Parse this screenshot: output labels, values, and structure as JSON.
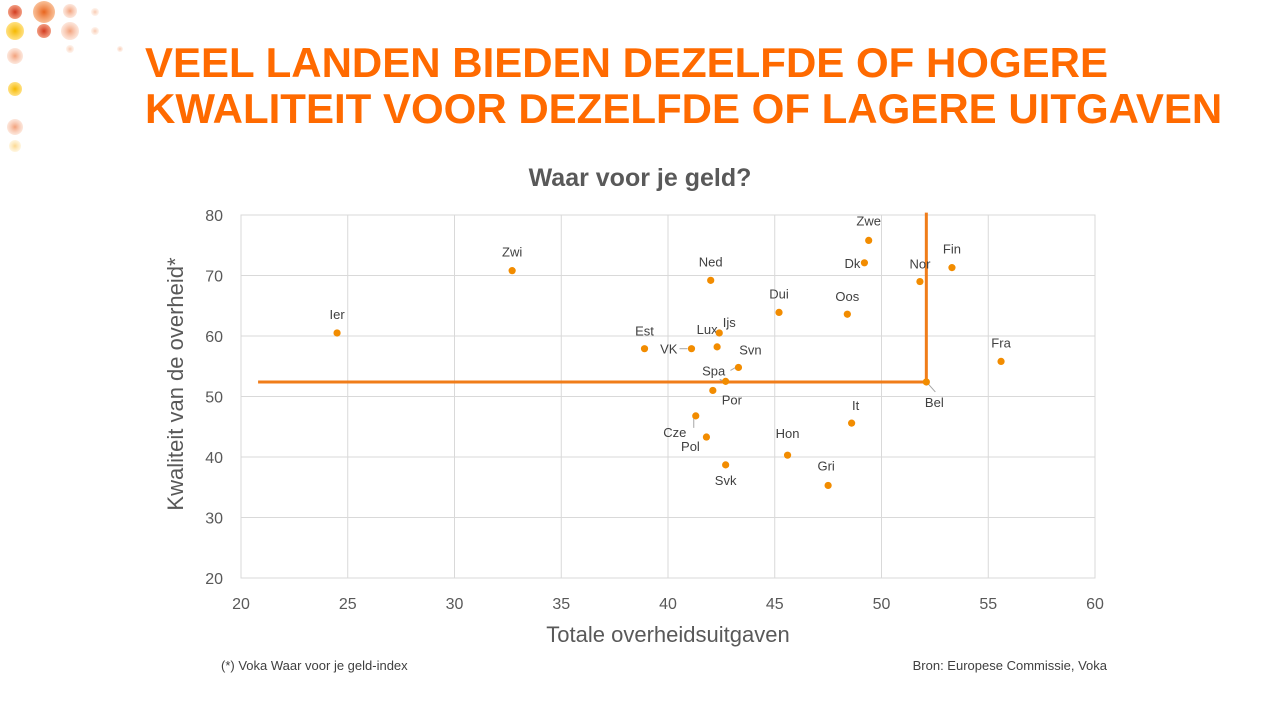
{
  "slide": {
    "headline_line1": "VEEL LANDEN BIEDEN DEZELFDE OF HOGERE",
    "headline_line2": "KWALITEIT VOOR DEZELFDE OF LAGERE UITGAVEN",
    "footnote": "(*) Voka Waar voor je geld-index",
    "source": "Bron: Europese Commissie, Voka",
    "accent_color": "#ff6a00",
    "point_color": "#f28c00"
  },
  "chart_data": {
    "type": "scatter",
    "title": "Waar voor je geld?",
    "xlabel": "Totale overheidsuitgaven",
    "ylabel": "Kwaliteit van de overheid*",
    "xlim": [
      20,
      60
    ],
    "ylim": [
      20,
      80
    ],
    "xticks": [
      "20",
      "25",
      "30",
      "35",
      "40",
      "45",
      "50",
      "55",
      "60"
    ],
    "yticks": [
      "20",
      "30",
      "40",
      "50",
      "60",
      "70",
      "80"
    ],
    "grid": true,
    "points": [
      {
        "label": "Ier",
        "x": 24.5,
        "y": 60.5
      },
      {
        "label": "Zwi",
        "x": 32.7,
        "y": 70.8
      },
      {
        "label": "Est",
        "x": 38.9,
        "y": 57.9
      },
      {
        "label": "VK",
        "x": 41.1,
        "y": 57.9
      },
      {
        "label": "Lux",
        "x": 42.3,
        "y": 58.2
      },
      {
        "label": "Ijs",
        "x": 42.4,
        "y": 60.5
      },
      {
        "label": "Ned",
        "x": 42.0,
        "y": 69.2
      },
      {
        "label": "Svn",
        "x": 43.3,
        "y": 54.8
      },
      {
        "label": "Spa",
        "x": 42.7,
        "y": 52.5
      },
      {
        "label": "Por",
        "x": 42.1,
        "y": 51.0
      },
      {
        "label": "Cze",
        "x": 41.3,
        "y": 46.8
      },
      {
        "label": "Pol",
        "x": 41.8,
        "y": 43.3
      },
      {
        "label": "Svk",
        "x": 42.7,
        "y": 38.7
      },
      {
        "label": "Hon",
        "x": 45.6,
        "y": 40.3
      },
      {
        "label": "Dui",
        "x": 45.2,
        "y": 63.9
      },
      {
        "label": "Oos",
        "x": 48.4,
        "y": 63.6
      },
      {
        "label": "Gri",
        "x": 47.5,
        "y": 35.3
      },
      {
        "label": "It",
        "x": 48.6,
        "y": 45.6
      },
      {
        "label": "Zwe",
        "x": 49.4,
        "y": 75.8
      },
      {
        "label": "Dk",
        "x": 49.2,
        "y": 72.1
      },
      {
        "label": "Nor",
        "x": 51.8,
        "y": 69.0
      },
      {
        "label": "Fin",
        "x": 53.3,
        "y": 71.3
      },
      {
        "label": "Fra",
        "x": 55.6,
        "y": 55.8
      },
      {
        "label": "Bel",
        "x": 52.1,
        "y": 52.4
      }
    ],
    "reference_lines": {
      "color": "#f07d1a",
      "horizontal_y": 52.4,
      "vertical_x": 52.1
    }
  }
}
